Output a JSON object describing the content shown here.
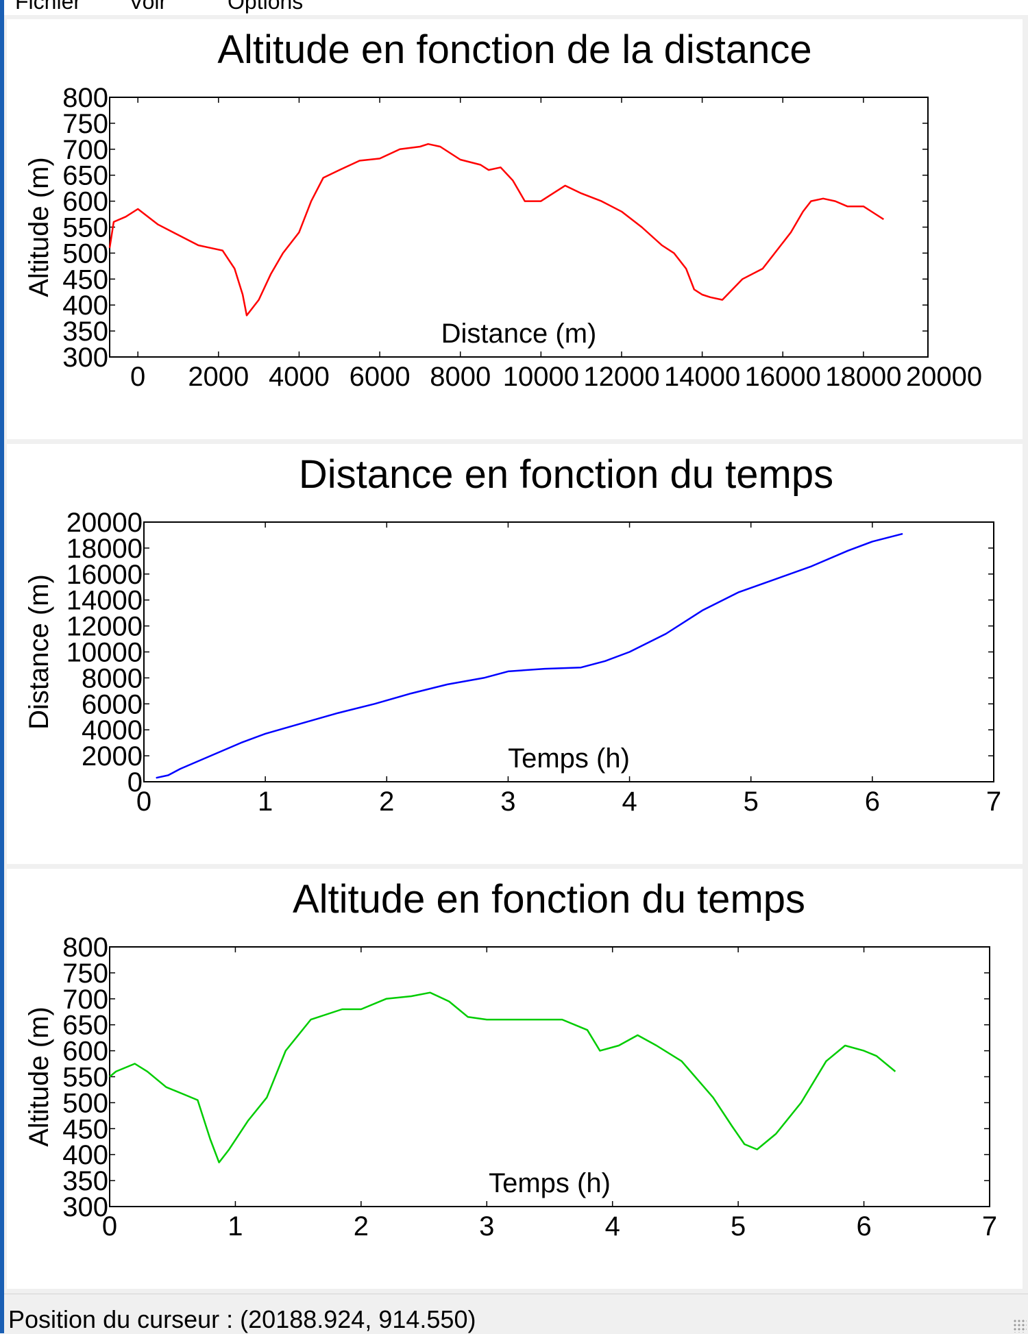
{
  "menu": {
    "items": [
      "Fichier",
      "Voir",
      "Options"
    ]
  },
  "status": {
    "text": "Position du curseur : (20188.924, 914.550)"
  },
  "chart_data": [
    {
      "type": "line",
      "title": "Altitude en fonction de la distance",
      "xlabel": "Distance (m)",
      "ylabel": "Altitude (m)",
      "xlim": [
        -700,
        19600
      ],
      "ylim": [
        300,
        800
      ],
      "xticks": [
        0,
        2000,
        4000,
        6000,
        8000,
        10000,
        12000,
        14000,
        16000,
        18000,
        20000
      ],
      "xtick_labels": [
        "0",
        "2000",
        "4000",
        "6000",
        "8000",
        "10000",
        "12000",
        "14000",
        "16000",
        "18000",
        "20000"
      ],
      "yticks": [
        300,
        350,
        400,
        450,
        500,
        550,
        600,
        650,
        700,
        750,
        800
      ],
      "ytick_labels": [
        "300",
        "350",
        "400",
        "450",
        "500",
        "550",
        "600",
        "650",
        "700",
        "750",
        "800"
      ],
      "grid": false,
      "color": "#ff0000",
      "series": [
        {
          "x": [
            -700,
            -600,
            -300,
            0,
            500,
            1000,
            1500,
            1800,
            2100,
            2400,
            2600,
            2700,
            3000,
            3300,
            3600,
            4000,
            4300,
            4600,
            5000,
            5500,
            6000,
            6500,
            7000,
            7200,
            7500,
            8000,
            8500,
            8700,
            9000,
            9300,
            9600,
            10000,
            10300,
            10600,
            11000,
            11500,
            12000,
            12500,
            13000,
            13300,
            13600,
            13800,
            14000,
            14200,
            14500,
            15000,
            15500,
            15800,
            16200,
            16500,
            16700,
            17000,
            17300,
            17600,
            18000,
            18300,
            18500
          ],
          "y": [
            510,
            560,
            570,
            585,
            555,
            535,
            515,
            510,
            505,
            470,
            420,
            380,
            410,
            460,
            500,
            540,
            600,
            645,
            660,
            678,
            682,
            700,
            705,
            710,
            705,
            680,
            670,
            660,
            665,
            640,
            600,
            600,
            615,
            630,
            615,
            600,
            580,
            550,
            515,
            500,
            470,
            430,
            420,
            415,
            410,
            450,
            470,
            500,
            540,
            580,
            600,
            605,
            600,
            590,
            590,
            575,
            565
          ]
        }
      ]
    },
    {
      "type": "line",
      "title": "Distance en fonction du temps",
      "xlabel": "Temps (h)",
      "ylabel": "Distance (m)",
      "xlim": [
        0,
        7
      ],
      "ylim": [
        0,
        20000
      ],
      "xticks": [
        0,
        1,
        2,
        3,
        4,
        5,
        6,
        7
      ],
      "xtick_labels": [
        "0",
        "1",
        "2",
        "3",
        "4",
        "5",
        "6",
        "7"
      ],
      "yticks": [
        0,
        2000,
        4000,
        6000,
        8000,
        10000,
        12000,
        14000,
        16000,
        18000,
        20000
      ],
      "ytick_labels": [
        "0",
        "2000",
        "4000",
        "6000",
        "8000",
        "10000",
        "12000",
        "14000",
        "16000",
        "18000",
        "20000"
      ],
      "grid": false,
      "color": "#0000ff",
      "series": [
        {
          "x": [
            0.1,
            0.2,
            0.3,
            0.5,
            0.8,
            1.0,
            1.3,
            1.6,
            1.9,
            2.2,
            2.5,
            2.8,
            3.0,
            3.3,
            3.6,
            3.8,
            4.0,
            4.3,
            4.6,
            4.9,
            5.2,
            5.5,
            5.8,
            6.0,
            6.25
          ],
          "y": [
            300,
            500,
            1000,
            1800,
            3000,
            3700,
            4500,
            5300,
            6000,
            6800,
            7500,
            8000,
            8500,
            8700,
            8800,
            9300,
            10000,
            11400,
            13200,
            14600,
            15600,
            16600,
            17800,
            18500,
            19100
          ]
        }
      ]
    },
    {
      "type": "line",
      "title": "Altitude en fonction du temps",
      "xlabel": "Temps (h)",
      "ylabel": "Altitude (m)",
      "xlim": [
        0,
        7
      ],
      "ylim": [
        300,
        800
      ],
      "xticks": [
        0,
        1,
        2,
        3,
        4,
        5,
        6,
        7
      ],
      "xtick_labels": [
        "0",
        "1",
        "2",
        "3",
        "4",
        "5",
        "6",
        "7"
      ],
      "yticks": [
        300,
        350,
        400,
        450,
        500,
        550,
        600,
        650,
        700,
        750,
        800
      ],
      "ytick_labels": [
        "300",
        "350",
        "400",
        "450",
        "500",
        "550",
        "600",
        "650",
        "700",
        "750",
        "800"
      ],
      "grid": false,
      "color": "#00cc00",
      "series": [
        {
          "x": [
            0.0,
            0.05,
            0.2,
            0.3,
            0.45,
            0.6,
            0.7,
            0.8,
            0.87,
            0.95,
            1.1,
            1.25,
            1.4,
            1.6,
            1.85,
            2.0,
            2.2,
            2.4,
            2.55,
            2.7,
            2.85,
            3.0,
            3.3,
            3.6,
            3.8,
            3.9,
            4.05,
            4.2,
            4.35,
            4.55,
            4.8,
            4.95,
            5.05,
            5.15,
            5.3,
            5.5,
            5.7,
            5.85,
            6.0,
            6.1,
            6.25
          ],
          "y": [
            550,
            560,
            575,
            560,
            530,
            515,
            505,
            430,
            385,
            410,
            465,
            510,
            600,
            660,
            680,
            680,
            700,
            705,
            712,
            695,
            665,
            660,
            660,
            660,
            640,
            600,
            610,
            630,
            610,
            580,
            510,
            455,
            420,
            410,
            440,
            500,
            580,
            610,
            600,
            590,
            560
          ]
        }
      ]
    }
  ]
}
